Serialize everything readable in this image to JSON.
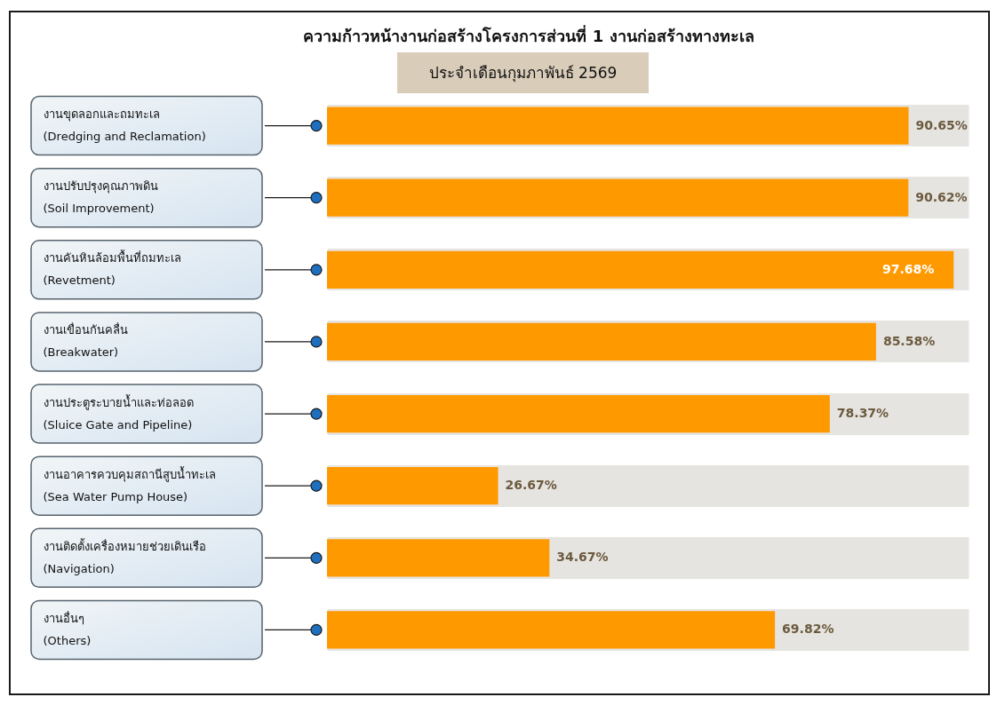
{
  "chart_data": {
    "type": "bar",
    "orientation": "horizontal",
    "title": "ความก้าวหน้างานก่อสร้างโครงการส่วนที่ 1 งานก่อสร้างทางทะเล",
    "subtitle": "ประจำเดือนกุมภาพันธ์ 2569",
    "categories": [
      "งานขุดลอกและถมทะเล\n(Dredging and Reclamation)",
      "งานปรับปรุงคุณภาพดิน\n(Soil Improvement)",
      "งานคันหินล้อมพื้นที่ถมทะเล\n(Revetment)",
      "งานเขื่อนกันคลื่น\n(Breakwater)",
      "งานประตูระบายน้ำและท่อลอด\n(Sluice Gate and Pipeline)",
      "งานอาคารควบคุมสถานีสูบน้ำทะเล\n(Sea Water Pump House)",
      "งานติดตั้งเครื่องหมายช่วยเดินเรือ\n(Navigation)",
      "งานอื่นๆ\n(Others)"
    ],
    "values": [
      90.65,
      90.62,
      97.68,
      85.58,
      78.37,
      26.67,
      34.67,
      69.82
    ],
    "value_labels": [
      "90.65%",
      "90.62%",
      "97.68%",
      "85.58%",
      "78.37%",
      "26.67%",
      "34.67%",
      "69.82%"
    ],
    "color": "#ff9900",
    "xlim": [
      0,
      100
    ],
    "grid": "y",
    "tick_labels": "y"
  }
}
